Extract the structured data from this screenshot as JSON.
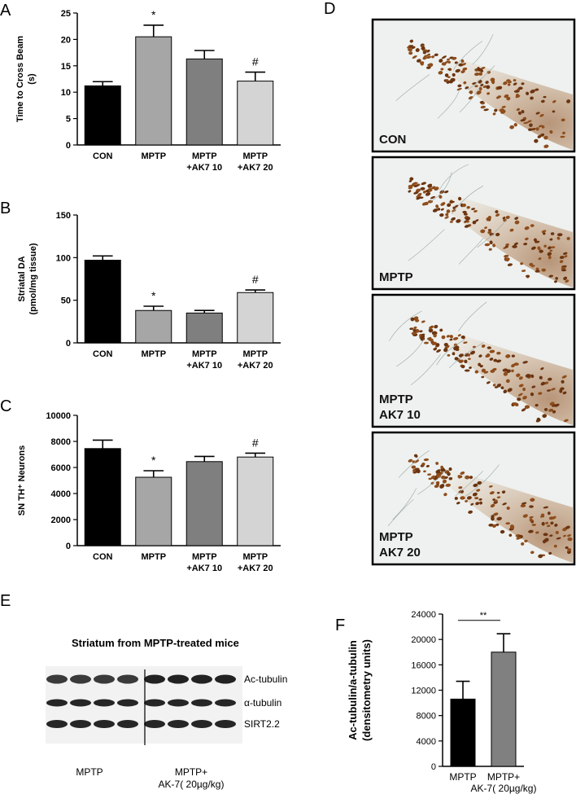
{
  "panels": {
    "A": "A",
    "B": "B",
    "C": "C",
    "D": "D",
    "E": "E",
    "F": "F"
  },
  "chart_data": [
    {
      "id": "A",
      "type": "bar",
      "ylabel_lines": [
        "Time to Cross Beam",
        "(s)"
      ],
      "ylim": [
        0,
        25
      ],
      "yticks": [
        "0",
        "5",
        "10",
        "15",
        "20",
        "25"
      ],
      "categories": [
        [
          "CON"
        ],
        [
          "MPTP"
        ],
        [
          "MPTP",
          "+AK7 10"
        ],
        [
          "MPTP",
          "+AK7 20"
        ]
      ],
      "values": [
        11.2,
        20.5,
        16.3,
        12.1
      ],
      "errors": [
        0.8,
        2.2,
        1.6,
        1.7
      ],
      "colors": [
        "#000000",
        "#a6a6a6",
        "#7f7f7f",
        "#d4d4d4"
      ],
      "annotations": [
        "",
        "*",
        "",
        "#"
      ]
    },
    {
      "id": "B",
      "type": "bar",
      "ylabel_lines": [
        "Striatal DA",
        "(pmol/mg tissue)"
      ],
      "ylim": [
        0,
        150
      ],
      "yticks": [
        "0",
        "50",
        "100",
        "150"
      ],
      "categories": [
        [
          "CON"
        ],
        [
          "MPTP"
        ],
        [
          "MPTP",
          "+AK7 10"
        ],
        [
          "MPTP",
          "+AK7 20"
        ]
      ],
      "values": [
        97,
        38,
        35,
        59
      ],
      "errors": [
        5,
        5,
        3,
        3
      ],
      "colors": [
        "#000000",
        "#a6a6a6",
        "#7f7f7f",
        "#d4d4d4"
      ],
      "annotations": [
        "",
        "*",
        "",
        "#"
      ]
    },
    {
      "id": "C",
      "type": "bar",
      "ylabel_lines": [
        "SN TH⁺ Neurons"
      ],
      "ylim": [
        0,
        10000
      ],
      "yticks": [
        "0",
        "2000",
        "4000",
        "6000",
        "8000",
        "10000"
      ],
      "categories": [
        [
          "CON"
        ],
        [
          "MPTP"
        ],
        [
          "MPTP",
          "+AK7 10"
        ],
        [
          "MPTP",
          "+AK7 20"
        ]
      ],
      "values": [
        7450,
        5250,
        6450,
        6800
      ],
      "errors": [
        650,
        500,
        400,
        300
      ],
      "colors": [
        "#000000",
        "#a6a6a6",
        "#7f7f7f",
        "#d4d4d4"
      ],
      "annotations": [
        "",
        "*",
        "",
        "#"
      ]
    },
    {
      "id": "F",
      "type": "bar",
      "ylabel_lines": [
        "Ac-tubulin/a-tubulin",
        "(densitometry units)"
      ],
      "ylim": [
        0,
        24000
      ],
      "yticks": [
        "0",
        "4000",
        "8000",
        "12000",
        "16000",
        "20000",
        "24000"
      ],
      "categories": [
        [
          "MPTP"
        ],
        [
          "MPTP+",
          "AK-7( 20µg/kg)"
        ]
      ],
      "values": [
        10600,
        18000
      ],
      "errors": [
        2800,
        2900
      ],
      "colors": [
        "#000000",
        "#808080"
      ],
      "annotations": [
        "**"
      ]
    }
  ],
  "micrographs": [
    {
      "label_lines": [
        "CON"
      ]
    },
    {
      "label_lines": [
        "MPTP"
      ]
    },
    {
      "label_lines": [
        "MPTP",
        "AK7 10"
      ]
    },
    {
      "label_lines": [
        "MPTP",
        "AK7 20"
      ]
    }
  ],
  "blot": {
    "title": "Striatum from MPTP-treated mice",
    "bands": [
      "Ac-tubulin",
      "α-tubulin",
      "SIRT2.2"
    ],
    "group1": "MPTP",
    "group2_lines": [
      "MPTP+",
      "AK-7( 20µg/kg)"
    ]
  }
}
